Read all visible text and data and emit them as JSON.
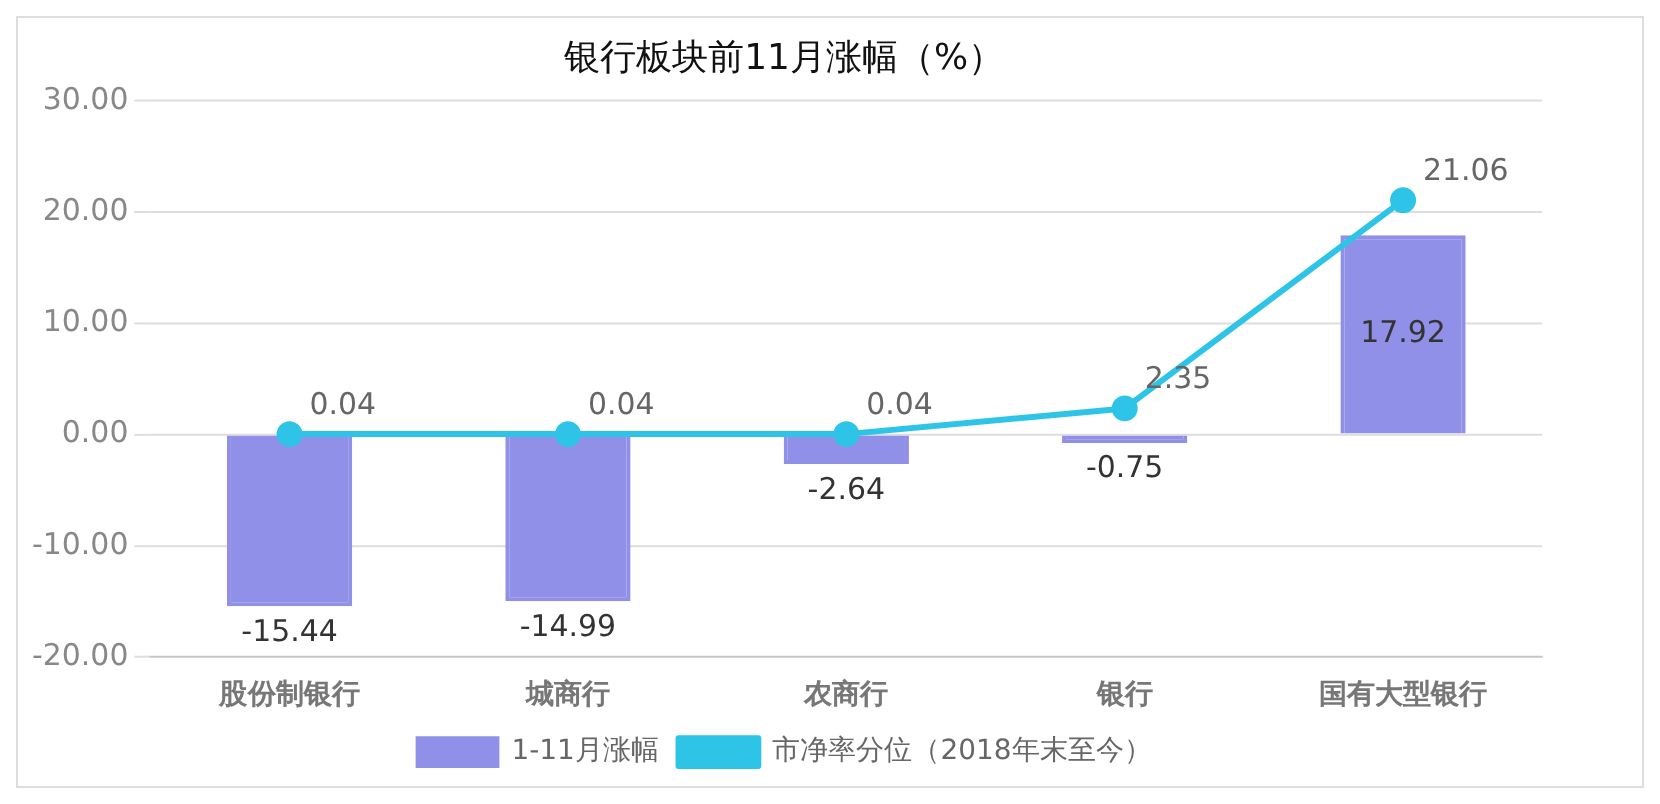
{
  "chart_data": {
    "type": "bar",
    "title": "银行板块前11月涨幅（%）",
    "categories": [
      "股份制银行",
      "城商行",
      "农商行",
      "银行",
      "国有大型银行"
    ],
    "series": [
      {
        "name": "1-11月涨幅",
        "color": "#9090e8",
        "values": [
          -15.44,
          -14.99,
          -2.64,
          -0.75,
          17.92
        ]
      },
      {
        "name": "市净率分位（2018年末至今）",
        "type": "line",
        "color": "#2ec4e8",
        "values": [
          0.04,
          0.04,
          0.04,
          2.35,
          21.06
        ]
      }
    ],
    "ylim": [
      -20,
      30
    ],
    "yticks": [
      {
        "value": -20,
        "label": "-20.00"
      },
      {
        "value": -10,
        "label": "-10.00"
      },
      {
        "value": 0,
        "label": "0.00"
      },
      {
        "value": 10,
        "label": "10.00"
      },
      {
        "value": 20,
        "label": "20.00"
      },
      {
        "value": 30,
        "label": "30.00"
      }
    ],
    "grid": "y",
    "legend": "bottom",
    "marker": "circle",
    "line_style": "solid",
    "data_labels": true
  }
}
